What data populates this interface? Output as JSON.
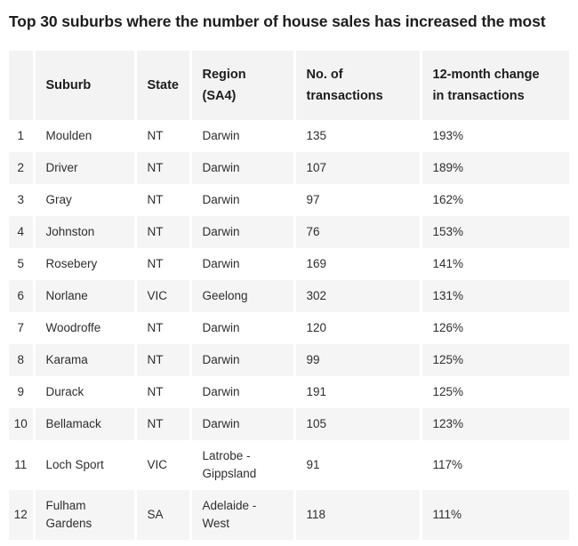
{
  "title": "Top 30 suburbs where the number of house sales has increased the most",
  "table": {
    "columns": [
      "",
      "Suburb",
      "State",
      "Region\n(SA4)",
      "No. of\ntransactions",
      "12-month change\nin transactions"
    ],
    "rows": [
      {
        "rank": "1",
        "suburb": "Moulden",
        "state": "NT",
        "region": "Darwin",
        "transactions": "135",
        "change": "193%"
      },
      {
        "rank": "2",
        "suburb": "Driver",
        "state": "NT",
        "region": "Darwin",
        "transactions": "107",
        "change": "189%"
      },
      {
        "rank": "3",
        "suburb": "Gray",
        "state": "NT",
        "region": "Darwin",
        "transactions": "97",
        "change": "162%"
      },
      {
        "rank": "4",
        "suburb": "Johnston",
        "state": "NT",
        "region": "Darwin",
        "transactions": "76",
        "change": "153%"
      },
      {
        "rank": "5",
        "suburb": "Rosebery",
        "state": "NT",
        "region": "Darwin",
        "transactions": "169",
        "change": "141%"
      },
      {
        "rank": "6",
        "suburb": "Norlane",
        "state": "VIC",
        "region": "Geelong",
        "transactions": "302",
        "change": "131%"
      },
      {
        "rank": "7",
        "suburb": "Woodroffe",
        "state": "NT",
        "region": "Darwin",
        "transactions": "120",
        "change": "126%"
      },
      {
        "rank": "8",
        "suburb": "Karama",
        "state": "NT",
        "region": "Darwin",
        "transactions": "99",
        "change": "125%"
      },
      {
        "rank": "9",
        "suburb": "Durack",
        "state": "NT",
        "region": "Darwin",
        "transactions": "191",
        "change": "125%"
      },
      {
        "rank": "10",
        "suburb": "Bellamack",
        "state": "NT",
        "region": "Darwin",
        "transactions": "105",
        "change": "123%"
      },
      {
        "rank": "11",
        "suburb": "Loch Sport",
        "state": "VIC",
        "region": "Latrobe -\nGippsland",
        "transactions": "91",
        "change": "117%"
      },
      {
        "rank": "12",
        "suburb": "Fulham\nGardens",
        "state": "SA",
        "region": "Adelaide -\nWest",
        "transactions": "118",
        "change": "111%"
      }
    ]
  },
  "colors": {
    "stripe_bg": "#f5f5f6",
    "header_bg": "#f3f3f4",
    "title_text": "#1d1d1d",
    "body_text": "#2e2e2e",
    "gutter": "#ffffff"
  }
}
